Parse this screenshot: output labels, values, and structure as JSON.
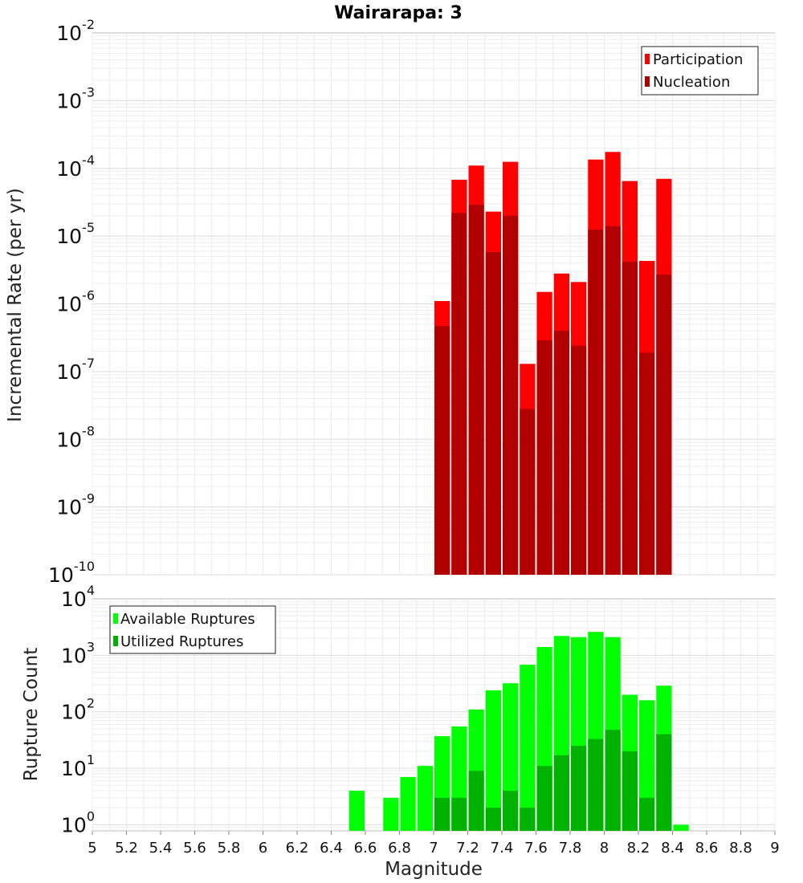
{
  "title": "Wairarapa: 3",
  "chart_data": [
    {
      "type": "bar",
      "scale": "log",
      "ylabel": "Incremental Rate (per yr)",
      "ylim": [
        1e-10,
        0.01
      ],
      "xlim": [
        5,
        9
      ],
      "bin_width": 0.1,
      "y_ticks": [
        {
          "base": "10",
          "exp": "-10"
        },
        {
          "base": "10",
          "exp": "-9"
        },
        {
          "base": "10",
          "exp": "-8"
        },
        {
          "base": "10",
          "exp": "-7"
        },
        {
          "base": "10",
          "exp": "-6"
        },
        {
          "base": "10",
          "exp": "-5"
        },
        {
          "base": "10",
          "exp": "-4"
        },
        {
          "base": "10",
          "exp": "-3"
        },
        {
          "base": "10",
          "exp": "-2"
        }
      ],
      "legend": {
        "placement": "top-right",
        "entries": [
          "Participation",
          "Nucleation"
        ]
      },
      "colors": {
        "Participation": "#ff0000",
        "Nucleation": "#b20000"
      },
      "x": [
        7.05,
        7.15,
        7.25,
        7.35,
        7.45,
        7.55,
        7.65,
        7.75,
        7.85,
        7.95,
        8.05,
        8.15,
        8.25,
        8.35
      ],
      "series": [
        {
          "name": "Participation",
          "values": [
            1.1e-06,
            6.8e-05,
            0.00011,
            2.3e-05,
            0.000125,
            1.3e-07,
            1.5e-06,
            2.8e-06,
            2.1e-06,
            0.000135,
            0.000175,
            6.5e-05,
            4.3e-06,
            7e-05
          ]
        },
        {
          "name": "Nucleation",
          "values": [
            4.7e-07,
            2.2e-05,
            2.9e-05,
            5.8e-06,
            2e-05,
            2.8e-08,
            2.9e-07,
            4e-07,
            2.4e-07,
            1.25e-05,
            1.4e-05,
            4.2e-06,
            1.9e-07,
            2.7e-06
          ]
        }
      ]
    },
    {
      "type": "bar",
      "scale": "log",
      "ylabel": "Rupture Count",
      "xlabel": "Magnitude",
      "ylim": [
        0.78,
        10000
      ],
      "xlim": [
        5,
        9
      ],
      "bin_width": 0.1,
      "y_ticks": [
        {
          "base": "10",
          "exp": "0"
        },
        {
          "base": "10",
          "exp": "1"
        },
        {
          "base": "10",
          "exp": "2"
        },
        {
          "base": "10",
          "exp": "3"
        },
        {
          "base": "10",
          "exp": "4"
        }
      ],
      "x_tick_labels": [
        "5",
        "5.2",
        "5.4",
        "5.6",
        "5.8",
        "6",
        "6.2",
        "6.4",
        "6.6",
        "6.8",
        "7",
        "7.2",
        "7.4",
        "7.6",
        "7.8",
        "8",
        "8.2",
        "8.4",
        "8.6",
        "8.8",
        "9"
      ],
      "legend": {
        "placement": "top-left",
        "entries": [
          "Available Ruptures",
          "Utilized Ruptures"
        ]
      },
      "colors": {
        "Available Ruptures": "#00ff00",
        "Utilized Ruptures": "#00b200"
      },
      "x": [
        6.55,
        6.75,
        6.85,
        6.95,
        7.05,
        7.15,
        7.25,
        7.35,
        7.45,
        7.55,
        7.65,
        7.75,
        7.85,
        7.95,
        8.05,
        8.15,
        8.25,
        8.35,
        8.45
      ],
      "series": [
        {
          "name": "Available Ruptures",
          "values": [
            4,
            3,
            7,
            11,
            37,
            55,
            110,
            240,
            320,
            680,
            1400,
            2200,
            2100,
            2600,
            2100,
            200,
            160,
            290,
            1
          ]
        },
        {
          "name": "Utilized Ruptures",
          "values": [
            null,
            null,
            null,
            null,
            3,
            3,
            9,
            2,
            4,
            2,
            11,
            17,
            25,
            33,
            48,
            20,
            3,
            40,
            null
          ]
        }
      ]
    }
  ]
}
